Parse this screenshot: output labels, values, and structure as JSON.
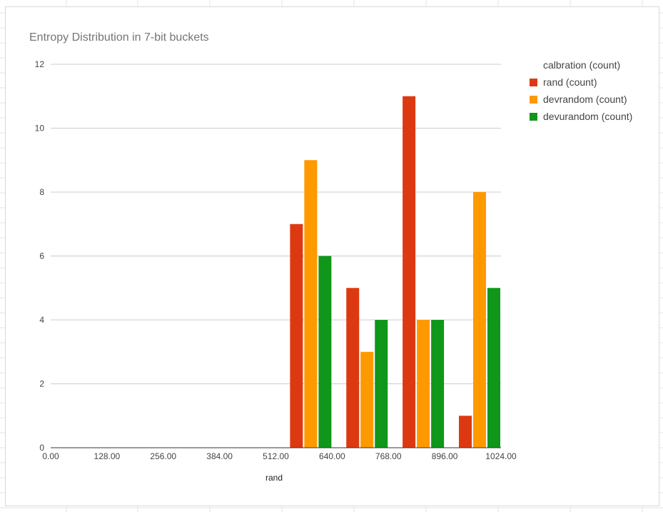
{
  "chart_data": {
    "type": "bar",
    "title": "Entropy Distribution in 7-bit buckets",
    "xlabel": "rand",
    "ylabel": "",
    "x_ticks": [
      "0.00",
      "128.00",
      "256.00",
      "384.00",
      "512.00",
      "640.00",
      "768.00",
      "896.00",
      "1024.00"
    ],
    "xlim": [
      0,
      1024
    ],
    "y_ticks": [
      "0",
      "2",
      "4",
      "6",
      "8",
      "10",
      "12"
    ],
    "ylim": [
      0,
      12
    ],
    "grid": true,
    "legend_position": "right",
    "bucket_centers": [
      640,
      768,
      896,
      1024
    ],
    "series": [
      {
        "name": "calbration (count)",
        "color": "#3366cc",
        "values": [
          0,
          0,
          0,
          0
        ]
      },
      {
        "name": "rand (count)",
        "color": "#dc3912",
        "values": [
          7,
          5,
          11,
          1
        ]
      },
      {
        "name": "devrandom (count)",
        "color": "#ff9900",
        "values": [
          9,
          3,
          4,
          8
        ]
      },
      {
        "name": "devurandom (count)",
        "color": "#109618",
        "values": [
          6,
          4,
          4,
          5
        ]
      }
    ]
  }
}
